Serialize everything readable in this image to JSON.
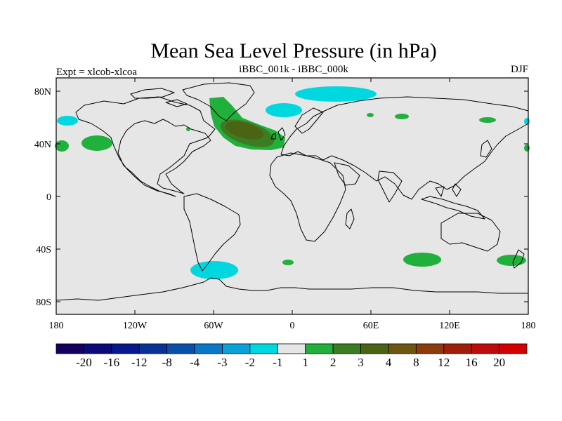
{
  "title": "Mean Sea Level Pressure (in hPa)",
  "left_string": "Expt = xlcob-xlcoa",
  "center_string": "iBBC_001k - iBBC_000k",
  "right_string": "DJF",
  "lat_ticks": [
    "80N",
    "40N",
    "0",
    "40S",
    "80S"
  ],
  "lon_ticks": [
    "180",
    "120W",
    "60W",
    "0",
    "60E",
    "120E",
    "180"
  ],
  "colorbar": {
    "labels": [
      "-20",
      "-16",
      "-12",
      "-8",
      "-4",
      "-3",
      "-2",
      "-1",
      "1",
      "2",
      "3",
      "4",
      "8",
      "12",
      "16",
      "20"
    ],
    "colors": [
      "#150060",
      "#0a0a78",
      "#06188c",
      "#0a3296",
      "#0a50aa",
      "#0a78c8",
      "#0aa0d8",
      "#00d8e0",
      "#e6e6e6",
      "#22b03c",
      "#3c7d23",
      "#4b6414",
      "#6e5514",
      "#8c3c0a",
      "#a01e0a",
      "#be0a0a",
      "#d20000"
    ]
  },
  "colors": {
    "ocean": "#e6e6e6",
    "coast": "#000000",
    "positive_1": "#22b03c",
    "positive_3": "#3c7d23",
    "positive_4": "#4b6414",
    "negative_2": "#00d8e0"
  }
}
